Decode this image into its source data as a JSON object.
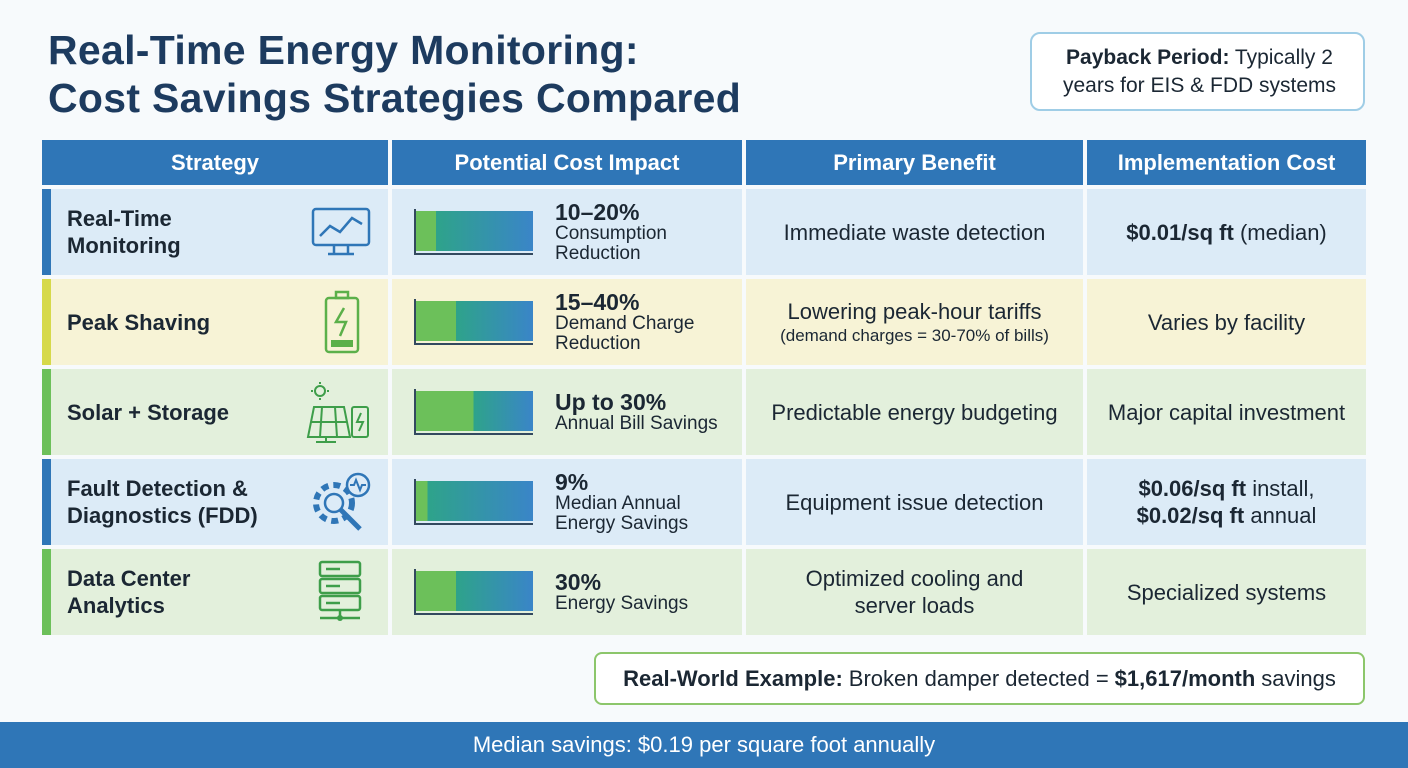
{
  "header": {
    "title_lines": [
      "Real-Time Energy Monitoring:",
      "Cost Savings Strategies Compared"
    ]
  },
  "payback": {
    "label": "Payback Period:",
    "text": "Typically 2 years for EIS & FDD systems"
  },
  "table": {
    "columns": [
      "Strategy",
      "Potential Cost Impact",
      "Primary Benefit",
      "Implementation Cost"
    ],
    "rows": [
      {
        "strategy": "Real-Time Monitoring",
        "impact": "10–20%",
        "impact_note": "Consumption Reduction",
        "benefit": "Immediate waste detection",
        "cost": [
          {
            "bold": "$0.01/sq ft",
            "text": "(median)"
          }
        ]
      },
      {
        "strategy": "Peak Shaving",
        "impact": "15–40%",
        "impact_note": "Demand Charge Reduction",
        "benefit": "Lowering peak-hour tariffs",
        "benefit_note": "(demand charges = 30-70% of bills)",
        "cost": [
          {
            "text": "Varies by facility"
          }
        ]
      },
      {
        "strategy": "Solar + Storage",
        "impact": "Up to 30%",
        "impact_note": "Annual Bill Savings",
        "benefit": "Predictable energy budgeting",
        "cost": [
          {
            "text": "Major capital investment"
          }
        ]
      },
      {
        "strategy": "Fault Detection & Diagnostics (FDD)",
        "impact": "9%",
        "impact_note": "Median Annual Energy Savings",
        "benefit": "Equipment issue detection",
        "cost": [
          {
            "bold": "$0.06/sq ft",
            "text": "install,"
          },
          {
            "bold": "$0.02/sq ft",
            "text": "annual"
          }
        ]
      },
      {
        "strategy": "Data Center Analytics",
        "impact": "30%",
        "impact_note": "Energy Savings",
        "benefit": "Optimized cooling and server loads",
        "cost": [
          {
            "text": "Specialized systems"
          }
        ]
      }
    ]
  },
  "example": {
    "label": "Real-World Example:",
    "text": "Broken damper detected =",
    "amount": "$1,617/month",
    "suffix": "savings"
  },
  "footer": "Median savings: $0.19 per square foot annually"
}
